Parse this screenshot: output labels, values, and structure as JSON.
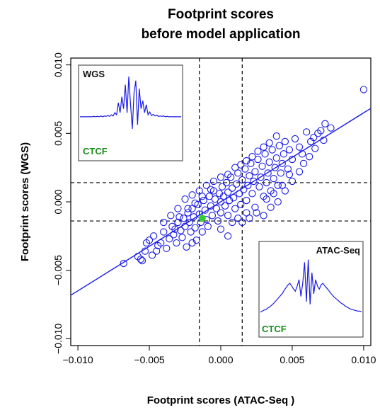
{
  "chart_data": {
    "type": "scatter",
    "title": [
      "Footprint scores",
      "before model application"
    ],
    "xlabel": "Footprint scores (ATAC-Seq )",
    "ylabel": "Footprint scores (WGS)",
    "xlim": [
      -0.0105,
      0.0105
    ],
    "ylim": [
      -0.0105,
      0.0105
    ],
    "x_ticks": [
      -0.01,
      -0.005,
      0.0,
      0.005,
      0.01
    ],
    "x_tick_labels": [
      "−0.010",
      "−0.005",
      "0.000",
      "0.005",
      "0.010"
    ],
    "y_ticks": [
      -0.01,
      -0.005,
      0.0,
      0.005,
      0.01
    ],
    "y_tick_labels": [
      "−0.010",
      "−0.005",
      "0.000",
      "0.005",
      "0.010"
    ],
    "point_color": "#1a1ae6",
    "highlight_color": "#33cc33",
    "line_color": "#1a1ae6",
    "regression_line": {
      "slope": 0.65,
      "intercept": 0.0
    },
    "threshold_lines": {
      "x": [
        -0.0015,
        0.0015
      ],
      "y": [
        -0.0014,
        0.0014
      ]
    },
    "highlight_point": {
      "x": -0.0013,
      "y": -0.0012
    },
    "series": [
      {
        "points": [
          [
            -0.0068,
            -0.0045
          ],
          [
            -0.0058,
            -0.004
          ],
          [
            -0.0055,
            -0.0043
          ],
          [
            -0.0053,
            -0.0036
          ],
          [
            -0.005,
            -0.0028
          ],
          [
            -0.0047,
            -0.0025
          ],
          [
            -0.0045,
            -0.0036
          ],
          [
            -0.0042,
            -0.003
          ],
          [
            -0.004,
            -0.0022
          ],
          [
            -0.0038,
            -0.0034
          ],
          [
            -0.0036,
            -0.0027
          ],
          [
            -0.0034,
            -0.0018
          ],
          [
            -0.0033,
            -0.0024
          ],
          [
            -0.0031,
            -0.003
          ],
          [
            -0.003,
            -0.0015
          ],
          [
            -0.0028,
            -0.0021
          ],
          [
            -0.0027,
            -0.0026
          ],
          [
            -0.0026,
            -0.0012
          ],
          [
            -0.0025,
            -0.0018
          ],
          [
            -0.0024,
            -0.0033
          ],
          [
            -0.0023,
            -0.0008
          ],
          [
            -0.0022,
            -0.0015
          ],
          [
            -0.0021,
            -0.0022
          ],
          [
            -0.002,
            -0.0005
          ],
          [
            -0.0019,
            -0.0011
          ],
          [
            -0.0018,
            -0.0019
          ],
          [
            -0.0017,
            -0.0028
          ],
          [
            -0.0016,
            -0.0002
          ],
          [
            -0.0015,
            -0.0009
          ],
          [
            -0.0014,
            -0.0015
          ],
          [
            -0.0013,
            -0.0022
          ],
          [
            -0.0012,
            0.0001
          ],
          [
            -0.0011,
            -0.0006
          ],
          [
            -0.001,
            -0.0013
          ],
          [
            -0.0009,
            -0.0018
          ],
          [
            -0.0008,
            0.0004
          ],
          [
            -0.0007,
            -0.0003
          ],
          [
            -0.0006,
            -0.001
          ],
          [
            -0.0005,
            0.0008
          ],
          [
            -0.0004,
            0.0002
          ],
          [
            -0.0003,
            -0.0005
          ],
          [
            -0.0002,
            -0.0014
          ],
          [
            -0.0001,
            0.0006
          ],
          [
            0.0,
            0.0
          ],
          [
            0.0,
            -0.0008
          ],
          [
            0.0001,
            0.0011
          ],
          [
            0.0002,
            0.0004
          ],
          [
            0.0003,
            -0.0003
          ],
          [
            0.0004,
            0.0014
          ],
          [
            0.0005,
            0.0007
          ],
          [
            0.0005,
            -0.001
          ],
          [
            0.0006,
            0.0001
          ],
          [
            0.0007,
            0.0018
          ],
          [
            0.0008,
            0.001
          ],
          [
            0.0009,
            0.0003
          ],
          [
            0.001,
            -0.0005
          ],
          [
            0.0011,
            0.0013
          ],
          [
            0.0012,
            0.0021
          ],
          [
            0.0013,
            0.0006
          ],
          [
            0.0014,
            -0.0002
          ],
          [
            0.0015,
            0.0016
          ],
          [
            0.0016,
            0.0009
          ],
          [
            0.0017,
            0.0024
          ],
          [
            0.0018,
            0.0001
          ],
          [
            0.0019,
            0.0012
          ],
          [
            0.002,
            0.0019
          ],
          [
            0.0021,
            0.0028
          ],
          [
            0.0022,
            0.0006
          ],
          [
            0.0023,
            0.0015
          ],
          [
            0.0024,
            0.0022
          ],
          [
            0.0025,
            -0.0008
          ],
          [
            0.0026,
            0.0031
          ],
          [
            0.0027,
            0.0011
          ],
          [
            0.0028,
            0.0018
          ],
          [
            0.0029,
            0.0026
          ],
          [
            0.003,
            0.0004
          ],
          [
            0.0031,
            0.0035
          ],
          [
            0.0032,
            0.0014
          ],
          [
            0.0033,
            0.0021
          ],
          [
            0.0034,
            0.0029
          ],
          [
            0.0035,
            0.0008
          ],
          [
            0.0036,
            0.0038
          ],
          [
            0.0037,
            0.0017
          ],
          [
            0.0038,
            0.0025
          ],
          [
            0.0039,
            0.0032
          ],
          [
            0.004,
            0.0012
          ],
          [
            0.0041,
            0.0041
          ],
          [
            0.0042,
            0.0021
          ],
          [
            0.0043,
            0.0028
          ],
          [
            0.0044,
            0.0035
          ],
          [
            0.0045,
            0.0044
          ],
          [
            0.0047,
            0.0024
          ],
          [
            0.0048,
            0.0038
          ],
          [
            0.005,
            0.0031
          ],
          [
            0.0052,
            0.0046
          ],
          [
            0.0055,
            0.004
          ],
          [
            0.0057,
            0.0035
          ],
          [
            0.006,
            0.0051
          ],
          [
            0.0063,
            0.0044
          ],
          [
            0.0066,
            0.0039
          ],
          [
            0.007,
            0.0052
          ],
          [
            0.0073,
            0.0057
          ],
          [
            0.0077,
            0.0054
          ],
          [
            0.01,
            0.0082
          ],
          [
            -0.0035,
            -0.001
          ],
          [
            -0.003,
            -0.0005
          ],
          [
            -0.0025,
            0.0002
          ],
          [
            -0.002,
            0.0005
          ],
          [
            -0.0015,
            0.0008
          ],
          [
            -0.001,
            0.0012
          ],
          [
            -0.0005,
            0.0015
          ],
          [
            0.0,
            0.0018
          ],
          [
            0.0005,
            0.002
          ],
          [
            0.001,
            0.0025
          ],
          [
            -0.004,
            -0.0015
          ],
          [
            -0.002,
            -0.003
          ],
          [
            0.0,
            -0.002
          ],
          [
            0.0005,
            -0.0025
          ],
          [
            0.0015,
            -0.0015
          ],
          [
            0.002,
            -0.0012
          ],
          [
            0.003,
            -0.001
          ],
          [
            0.0035,
            -0.0004
          ],
          [
            0.004,
            0.0
          ],
          [
            0.0045,
            0.0008
          ],
          [
            0.005,
            0.0015
          ],
          [
            0.0055,
            0.0022
          ],
          [
            0.0058,
            0.0028
          ],
          [
            0.0062,
            0.0033
          ],
          [
            0.0065,
            0.0047
          ],
          [
            0.0068,
            0.005
          ],
          [
            0.0072,
            0.0045
          ],
          [
            0.0039,
            0.0048
          ],
          [
            0.0034,
            0.0043
          ],
          [
            0.003,
            0.004
          ],
          [
            0.0026,
            0.0037
          ],
          [
            0.0022,
            0.0033
          ],
          [
            0.0018,
            0.003
          ],
          [
            0.0014,
            0.0027
          ],
          [
            -0.0007,
            0.0009
          ],
          [
            -0.0013,
            0.0004
          ],
          [
            -0.0018,
            -0.0001
          ],
          [
            -0.0023,
            -0.0005
          ],
          [
            -0.0029,
            -0.0011
          ],
          [
            -0.0032,
            -0.002
          ],
          [
            -0.0044,
            -0.0032
          ],
          [
            -0.0048,
            -0.0039
          ],
          [
            -0.0052,
            -0.003
          ],
          [
            -0.0056,
            -0.0042
          ],
          [
            0.0008,
            -0.0015
          ],
          [
            0.0012,
            -0.0012
          ],
          [
            0.0018,
            -0.0008
          ],
          [
            0.0024,
            -0.0004
          ],
          [
            0.0032,
            0.0002
          ],
          [
            0.0037,
            0.0006
          ],
          [
            0.0043,
            0.0012
          ],
          [
            0.0048,
            0.002
          ]
        ]
      }
    ],
    "insets": [
      {
        "position": "top-left",
        "top_label": "WGS",
        "bottom_label": "CTCF",
        "profile": [
          0,
          0,
          0,
          0,
          0,
          0,
          0,
          0,
          0.01,
          0,
          0.01,
          0,
          0.02,
          0,
          0.02,
          0.01,
          0.03,
          0.01,
          0.05,
          0.02,
          0.1,
          0.05,
          0.35,
          0.1,
          0.5,
          0.2,
          0.8,
          0.1,
          1.0,
          0.3,
          -0.3,
          0.6,
          0.9,
          -0.2,
          0.7,
          0.2,
          0.4,
          0.1,
          0.3,
          0.05,
          0.12,
          0.03,
          0.06,
          0.02,
          0.04,
          0.01,
          0.02,
          0.01,
          0.02,
          0,
          0.01,
          0,
          0,
          0,
          0,
          0,
          0,
          0,
          0
        ]
      },
      {
        "position": "bottom-right",
        "top_label": "ATAC-Seq",
        "bottom_label": "CTCF",
        "profile": [
          0,
          0.02,
          0.04,
          0.05,
          0.08,
          0.1,
          0.13,
          0.16,
          0.2,
          0.24,
          0.28,
          0.32,
          0.36,
          0.42,
          0.47,
          0.52,
          0.55,
          0.5,
          0.44,
          0.4,
          0.5,
          0.62,
          0.3,
          0.55,
          0.95,
          0.2,
          1.0,
          0.15,
          0.75,
          0.35,
          0.62,
          0.5,
          0.44,
          0.52,
          0.55,
          0.5,
          0.46,
          0.42,
          0.37,
          0.33,
          0.29,
          0.26,
          0.23,
          0.2,
          0.17,
          0.15,
          0.12,
          0.1,
          0.08,
          0.06,
          0.05,
          0.04,
          0.03,
          0.02,
          0.02,
          0.01
        ]
      }
    ],
    "grid": false,
    "legend": "none"
  }
}
